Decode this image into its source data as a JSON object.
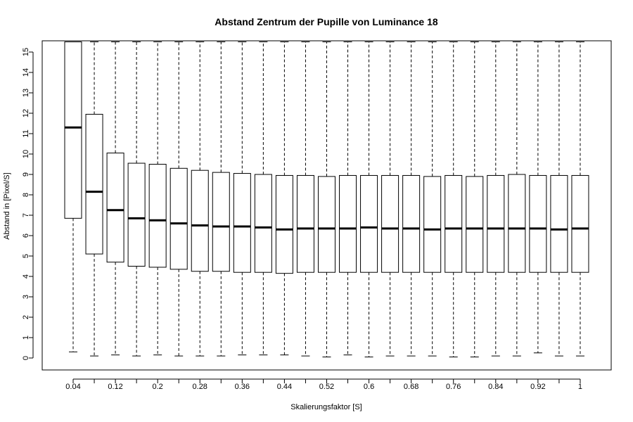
{
  "chart_data": {
    "type": "boxplot",
    "title": "Abstand Zentrum der Pupille von Luminance 18",
    "xlabel": "Skalierungsfaktor [S]",
    "ylabel": "Abstand in [Pixel/S]",
    "ylim": [
      -0.6,
      16
    ],
    "y_ticks": [
      0,
      1,
      2,
      3,
      4,
      5,
      6,
      7,
      8,
      9,
      10,
      11,
      12,
      13,
      14,
      15
    ],
    "categories": [
      "0.04",
      "0.08",
      "0.12",
      "0.16",
      "0.2",
      "0.24",
      "0.28",
      "0.32",
      "0.36",
      "0.4",
      "0.44",
      "0.48",
      "0.52",
      "0.56",
      "0.6",
      "0.64",
      "0.68",
      "0.72",
      "0.76",
      "0.8",
      "0.84",
      "0.88",
      "0.92",
      "0.96",
      "1"
    ],
    "x_tick_labels": [
      "0.04",
      "0.12",
      "0.2",
      "0.28",
      "0.36",
      "0.44",
      "0.52",
      "0.6",
      "0.68",
      "0.76",
      "0.84",
      "0.92",
      "1"
    ],
    "boxes": [
      {
        "min": 0.3,
        "q1": 6.85,
        "median": 11.3,
        "q3": 15.5,
        "max": 15.5
      },
      {
        "min": 0.1,
        "q1": 5.1,
        "median": 8.15,
        "q3": 11.95,
        "max": 15.5
      },
      {
        "min": 0.15,
        "q1": 4.7,
        "median": 7.25,
        "q3": 10.05,
        "max": 15.5
      },
      {
        "min": 0.1,
        "q1": 4.5,
        "median": 6.85,
        "q3": 9.55,
        "max": 15.5
      },
      {
        "min": 0.15,
        "q1": 4.45,
        "median": 6.75,
        "q3": 9.5,
        "max": 15.5
      },
      {
        "min": 0.1,
        "q1": 4.35,
        "median": 6.6,
        "q3": 9.3,
        "max": 15.5
      },
      {
        "min": 0.1,
        "q1": 4.25,
        "median": 6.5,
        "q3": 9.2,
        "max": 15.5
      },
      {
        "min": 0.1,
        "q1": 4.25,
        "median": 6.45,
        "q3": 9.1,
        "max": 15.5
      },
      {
        "min": 0.15,
        "q1": 4.2,
        "median": 6.45,
        "q3": 9.05,
        "max": 15.5
      },
      {
        "min": 0.15,
        "q1": 4.2,
        "median": 6.4,
        "q3": 9.0,
        "max": 15.5
      },
      {
        "min": 0.15,
        "q1": 4.15,
        "median": 6.3,
        "q3": 8.95,
        "max": 15.5
      },
      {
        "min": 0.1,
        "q1": 4.2,
        "median": 6.35,
        "q3": 8.95,
        "max": 15.5
      },
      {
        "min": 0.05,
        "q1": 4.2,
        "median": 6.35,
        "q3": 8.9,
        "max": 15.5
      },
      {
        "min": 0.15,
        "q1": 4.2,
        "median": 6.35,
        "q3": 8.95,
        "max": 15.5
      },
      {
        "min": 0.05,
        "q1": 4.2,
        "median": 6.4,
        "q3": 8.95,
        "max": 15.5
      },
      {
        "min": 0.1,
        "q1": 4.2,
        "median": 6.35,
        "q3": 8.95,
        "max": 15.5
      },
      {
        "min": 0.1,
        "q1": 4.2,
        "median": 6.35,
        "q3": 8.95,
        "max": 15.5
      },
      {
        "min": 0.1,
        "q1": 4.2,
        "median": 6.3,
        "q3": 8.9,
        "max": 15.5
      },
      {
        "min": 0.05,
        "q1": 4.2,
        "median": 6.35,
        "q3": 8.95,
        "max": 15.5
      },
      {
        "min": 0.05,
        "q1": 4.2,
        "median": 6.35,
        "q3": 8.9,
        "max": 15.5
      },
      {
        "min": 0.1,
        "q1": 4.2,
        "median": 6.35,
        "q3": 8.95,
        "max": 15.5
      },
      {
        "min": 0.1,
        "q1": 4.2,
        "median": 6.35,
        "q3": 9.0,
        "max": 15.5
      },
      {
        "min": 0.25,
        "q1": 4.2,
        "median": 6.35,
        "q3": 8.95,
        "max": 15.5
      },
      {
        "min": 0.1,
        "q1": 4.2,
        "median": 6.3,
        "q3": 8.95,
        "max": 15.5
      },
      {
        "min": 0.1,
        "q1": 4.2,
        "median": 6.35,
        "q3": 8.95,
        "max": 15.5
      }
    ],
    "grid": false,
    "legend": "none"
  }
}
